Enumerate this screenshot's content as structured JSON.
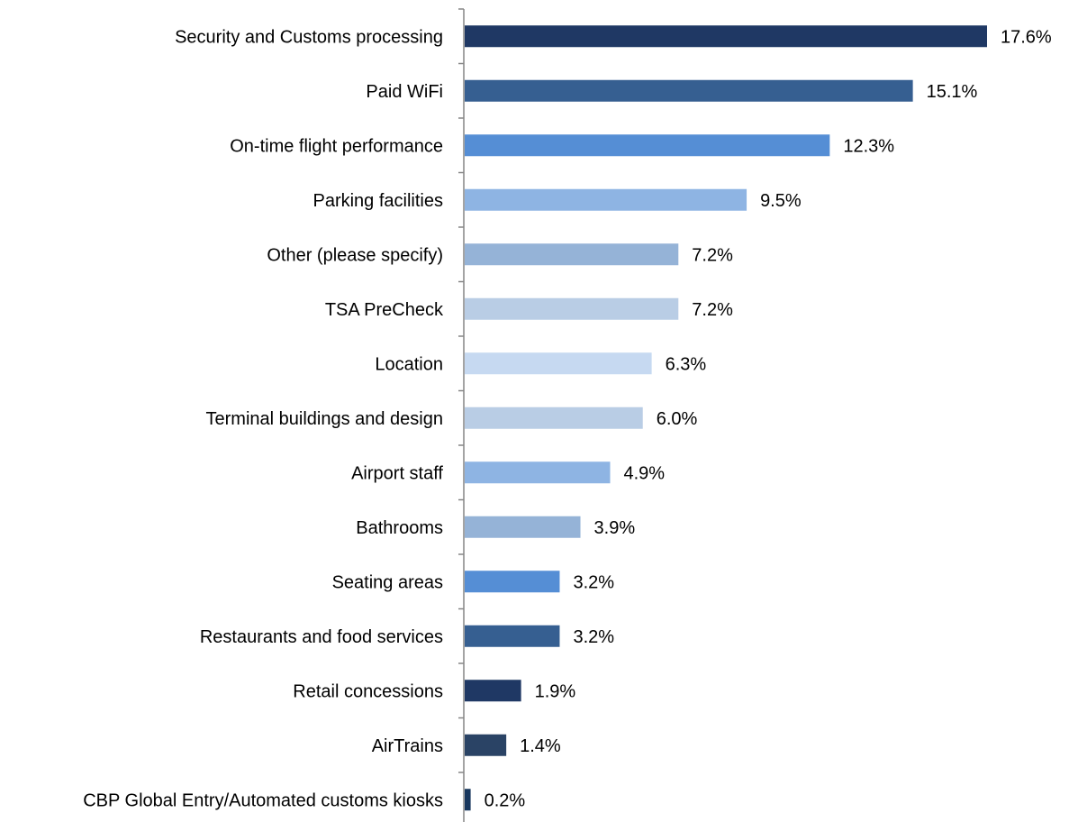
{
  "chart_data": {
    "type": "bar",
    "orientation": "horizontal",
    "value_suffix": "%",
    "title": "",
    "xlabel": "",
    "ylabel": "",
    "xlim": [
      0,
      17.6
    ],
    "grid": false,
    "legend": "none",
    "categories": [
      "Security and Customs processing",
      "Paid WiFi",
      "On-time flight performance",
      "Parking facilities",
      "Other (please specify)",
      "TSA PreCheck",
      "Location",
      "Terminal buildings and design",
      "Airport staff",
      "Bathrooms",
      "Seating areas",
      "Restaurants and food services",
      "Retail concessions",
      "AirTrains",
      "CBP Global Entry/Automated customs kiosks"
    ],
    "values": [
      17.6,
      15.1,
      12.3,
      9.5,
      7.2,
      7.2,
      6.3,
      6.0,
      4.9,
      3.9,
      3.2,
      3.2,
      1.9,
      1.4,
      0.2
    ],
    "value_labels": [
      "17.6%",
      "15.1%",
      "12.3%",
      "9.5%",
      "7.2%",
      "7.2%",
      "6.3%",
      "6.0%",
      "4.9%",
      "3.9%",
      "3.2%",
      "3.2%",
      "1.9%",
      "1.4%",
      "0.2%"
    ],
    "bar_colors": [
      "#1f3864",
      "#365f91",
      "#558ed5",
      "#8eb4e3",
      "#95b3d7",
      "#b9cde5",
      "#c6d9f1",
      "#b9cde5",
      "#8eb4e3",
      "#95b3d7",
      "#558ed5",
      "#365f91",
      "#1f3864",
      "#2a4365",
      "#17365d"
    ],
    "axis_color": "#868686"
  }
}
